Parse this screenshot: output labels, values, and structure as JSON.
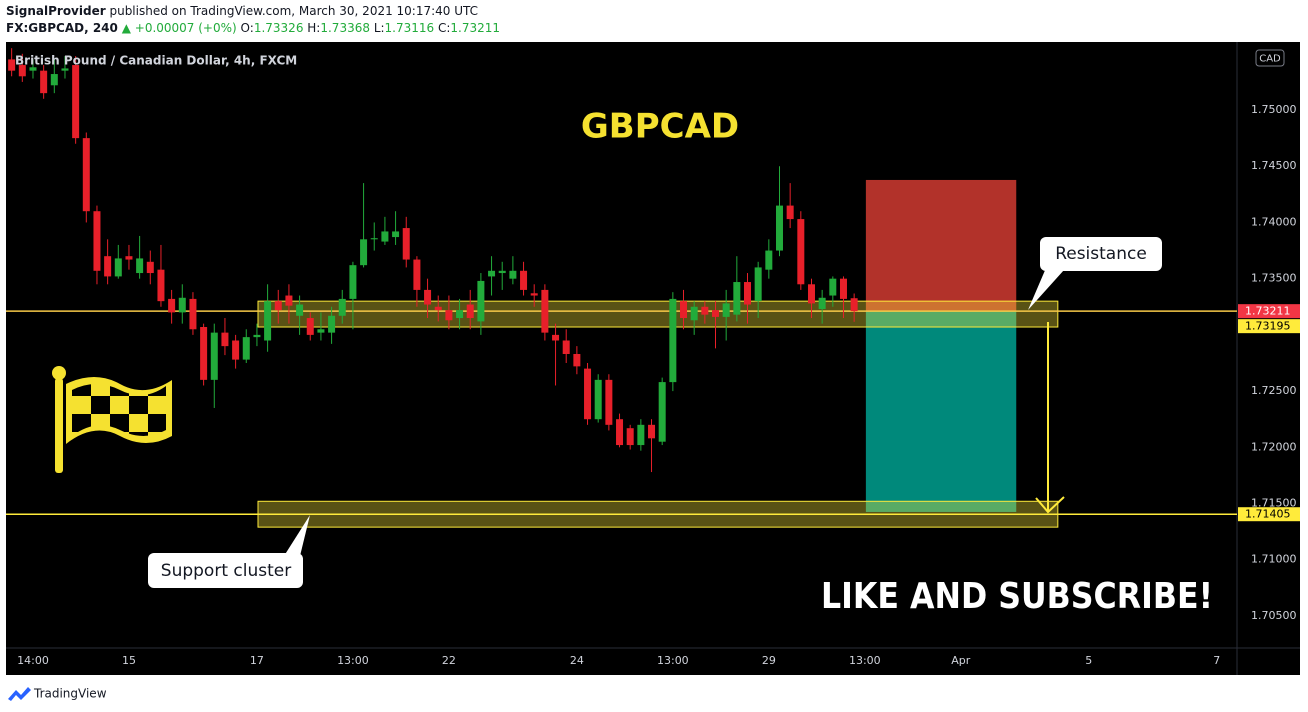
{
  "header": {
    "publisher": "SignalProvider",
    "published": "published on TradingView.com, March 30, 2021 10:17:40 UTC",
    "symbol": "FX:GBPCAD, 240",
    "change": "▲ +0.00007 (+0%)",
    "ohlc_labels": [
      "O:",
      "H:",
      "L:",
      "C:"
    ]
  },
  "chart_data": {
    "type": "candlestick",
    "title": "British Pound / Canadian Dollar, 4h, FXCM",
    "currency": "CAD",
    "x": [
      0,
      1,
      2,
      3,
      4,
      5,
      6,
      7,
      8,
      9,
      10,
      11,
      12,
      13,
      14,
      15,
      16,
      17,
      18,
      19,
      20,
      21,
      22,
      23,
      24,
      25,
      26,
      27,
      28,
      29,
      30,
      31,
      32,
      33,
      34,
      35,
      36,
      37,
      38,
      39,
      40,
      41,
      42,
      43,
      44,
      45,
      46,
      47,
      48,
      49,
      50,
      51,
      52,
      53,
      54,
      55,
      56,
      57,
      58,
      59,
      60,
      61,
      62,
      63,
      64,
      65,
      66,
      67,
      68,
      69,
      70,
      71,
      72,
      73,
      74,
      75,
      76,
      77,
      78,
      79
    ],
    "open": [
      1.7545,
      1.754,
      1.7535,
      1.7535,
      1.7522,
      1.7535,
      1.754,
      1.7475,
      1.741,
      1.737,
      1.7352,
      1.737,
      1.7355,
      1.7365,
      1.7358,
      1.7332,
      1.732,
      1.7332,
      1.7307,
      1.726,
      1.7302,
      1.7295,
      1.7278,
      1.7298,
      1.7295,
      1.733,
      1.7335,
      1.7317,
      1.7315,
      1.7302,
      1.7302,
      1.7317,
      1.7332,
      1.7362,
      1.7385,
      1.7383,
      1.7387,
      1.7395,
      1.7367,
      1.734,
      1.7325,
      1.7322,
      1.7315,
      1.7327,
      1.7312,
      1.7352,
      1.7355,
      1.735,
      1.7357,
      1.7337,
      1.734,
      1.73,
      1.7295,
      1.7283,
      1.727,
      1.7225,
      1.726,
      1.7225,
      1.7217,
      1.7202,
      1.722,
      1.7205,
      1.7258,
      1.733,
      1.7313,
      1.7325,
      1.7322,
      1.7316,
      1.7318,
      1.7347,
      1.733,
      1.7358,
      1.7375,
      1.7415,
      1.7403,
      1.7345,
      1.7323,
      1.7335,
      1.735,
      1.73326
    ],
    "high": [
      1.7555,
      1.755,
      1.7545,
      1.754,
      1.7545,
      1.7548,
      1.7548,
      1.748,
      1.7415,
      1.7385,
      1.738,
      1.738,
      1.7388,
      1.7375,
      1.738,
      1.734,
      1.7345,
      1.7338,
      1.731,
      1.731,
      1.7315,
      1.73,
      1.7305,
      1.731,
      1.7345,
      1.734,
      1.7345,
      1.7335,
      1.732,
      1.732,
      1.7325,
      1.734,
      1.7365,
      1.7435,
      1.74,
      1.7405,
      1.741,
      1.7405,
      1.737,
      1.735,
      1.7335,
      1.7335,
      1.7332,
      1.734,
      1.7355,
      1.737,
      1.7365,
      1.737,
      1.7365,
      1.7345,
      1.7345,
      1.731,
      1.7305,
      1.729,
      1.7275,
      1.7265,
      1.7265,
      1.723,
      1.722,
      1.7225,
      1.7225,
      1.7262,
      1.7338,
      1.734,
      1.733,
      1.733,
      1.733,
      1.734,
      1.737,
      1.7355,
      1.7365,
      1.7385,
      1.745,
      1.7435,
      1.741,
      1.735,
      1.734,
      1.7352,
      1.7352,
      1.73368
    ],
    "low": [
      1.753,
      1.7525,
      1.7528,
      1.751,
      1.7515,
      1.7528,
      1.747,
      1.74,
      1.7345,
      1.7345,
      1.735,
      1.7358,
      1.735,
      1.7345,
      1.7325,
      1.731,
      1.731,
      1.73,
      1.7255,
      1.7235,
      1.7282,
      1.727,
      1.7275,
      1.729,
      1.7285,
      1.731,
      1.731,
      1.73,
      1.7295,
      1.7295,
      1.7292,
      1.731,
      1.7305,
      1.736,
      1.7375,
      1.738,
      1.738,
      1.736,
      1.7325,
      1.7315,
      1.7312,
      1.7305,
      1.7305,
      1.7305,
      1.73,
      1.7335,
      1.734,
      1.7345,
      1.7335,
      1.7325,
      1.7295,
      1.7255,
      1.7275,
      1.7265,
      1.722,
      1.7222,
      1.7215,
      1.72,
      1.7198,
      1.7197,
      1.7178,
      1.7202,
      1.725,
      1.7305,
      1.73,
      1.731,
      1.7288,
      1.7295,
      1.7312,
      1.731,
      1.7315,
      1.735,
      1.737,
      1.7395,
      1.734,
      1.7315,
      1.731,
      1.7325,
      1.7315,
      1.73116
    ],
    "close": [
      1.7535,
      1.753,
      1.7538,
      1.7515,
      1.7532,
      1.7537,
      1.7475,
      1.741,
      1.7357,
      1.7352,
      1.7368,
      1.7367,
      1.7368,
      1.7355,
      1.733,
      1.732,
      1.7333,
      1.7305,
      1.726,
      1.7302,
      1.729,
      1.7278,
      1.7298,
      1.73,
      1.733,
      1.7322,
      1.7326,
      1.7327,
      1.73,
      1.7305,
      1.7317,
      1.7332,
      1.7362,
      1.7385,
      1.7386,
      1.7392,
      1.7392,
      1.7367,
      1.734,
      1.7327,
      1.7322,
      1.7313,
      1.7322,
      1.7315,
      1.7348,
      1.7357,
      1.7357,
      1.7357,
      1.734,
      1.7335,
      1.7302,
      1.7295,
      1.7283,
      1.7272,
      1.7225,
      1.726,
      1.722,
      1.7202,
      1.7202,
      1.722,
      1.7208,
      1.7258,
      1.7332,
      1.7315,
      1.7325,
      1.7318,
      1.7316,
      1.7328,
      1.7347,
      1.7327,
      1.736,
      1.7375,
      1.7415,
      1.7403,
      1.7345,
      1.7328,
      1.7333,
      1.735,
      1.7332,
      1.73211
    ],
    "up_color": "#22ab3b",
    "down_color": "#e8202a",
    "xlim": [
      -0.53,
      114.9
    ],
    "xticks": [
      {
        "value": 2,
        "label": "14:00"
      },
      {
        "value": 11,
        "label": "15"
      },
      {
        "value": 23,
        "label": "17"
      },
      {
        "value": 32,
        "label": "13:00"
      },
      {
        "value": 41,
        "label": "22"
      },
      {
        "value": 53,
        "label": "24"
      },
      {
        "value": 62,
        "label": "13:00"
      },
      {
        "value": 71,
        "label": "29"
      },
      {
        "value": 80,
        "label": "13:00"
      },
      {
        "value": 89,
        "label": "Apr"
      },
      {
        "value": 101,
        "label": "5"
      },
      {
        "value": 113,
        "label": "7"
      }
    ],
    "ylim": [
      1.70215,
      1.75605
    ],
    "yticks": [
      {
        "value": 1.705,
        "label": "1.70500"
      },
      {
        "value": 1.71,
        "label": "1.71000"
      },
      {
        "value": 1.715,
        "label": "1.71500"
      },
      {
        "value": 1.72,
        "label": "1.72000"
      },
      {
        "value": 1.725,
        "label": "1.72500"
      },
      {
        "value": 1.735,
        "label": "1.73500"
      },
      {
        "value": 1.74,
        "label": "1.74000"
      },
      {
        "value": 1.745,
        "label": "1.74500"
      },
      {
        "value": 1.75,
        "label": "1.75000"
      }
    ],
    "grid": false,
    "price_lines": [
      {
        "value": 1.73211,
        "line_color": "#f7c948",
        "label_color": "#f23645",
        "text_color": "#ffffff"
      },
      {
        "value": 1.73195,
        "label_color": "#ffeb3b",
        "text_color": "#000000"
      },
      {
        "value": 1.71405,
        "line_color": "#ffeb3b",
        "label_color": "#ffeb3b",
        "text_color": "#000000"
      }
    ],
    "zones": [
      {
        "x": [
          23.1,
          98.1
        ],
        "top": 1.733,
        "bottom": 1.7307
      },
      {
        "x": [
          23.1,
          98.1
        ],
        "top": 1.7152,
        "bottom": 1.7129
      }
    ],
    "position": {
      "x": [
        80.1,
        94.2
      ],
      "entry": 1.73211,
      "stop": 1.74378,
      "target": 1.71425,
      "stop_color": "#b2322a",
      "target_color": "#00897b"
    },
    "annotations": {
      "symbol": "GBPCAD",
      "cta": "LIKE AND SUBSCRIBE!",
      "resistance": "Resistance",
      "support": "Support cluster"
    }
  },
  "footer": {
    "brand": "TradingView"
  }
}
